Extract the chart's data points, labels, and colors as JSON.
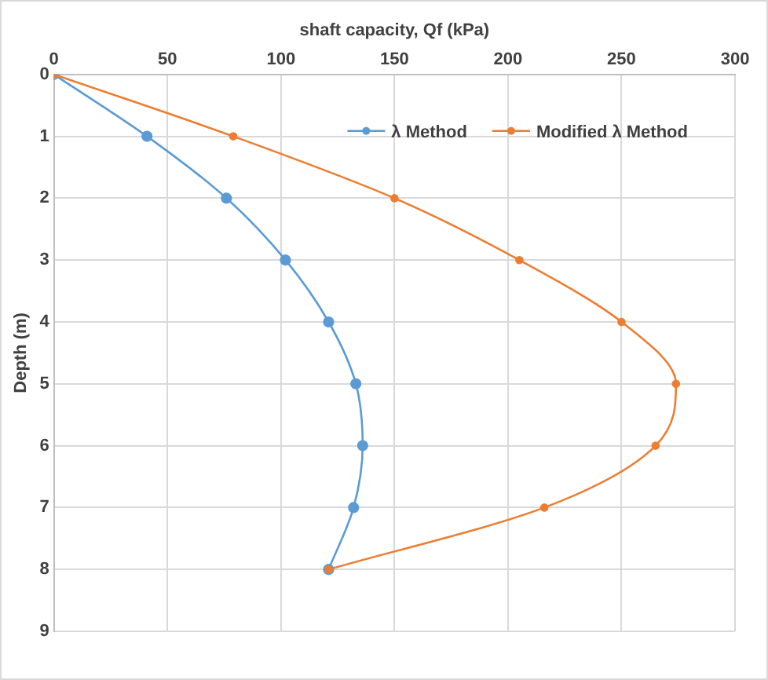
{
  "chart_data": {
    "type": "line",
    "orientation": "horizontal",
    "xlabel": "shaft capacity, Qf (kPa)",
    "ylabel": "Depth (m)",
    "x": [
      0,
      1,
      2,
      3,
      4,
      5,
      6,
      7,
      8
    ],
    "series": [
      {
        "name": "λ Method",
        "color": "#5b9bd5",
        "values": [
          0,
          41,
          76,
          102,
          121,
          133,
          136,
          132,
          121
        ]
      },
      {
        "name": "Modified λ Method",
        "color": "#ed7d31",
        "values": [
          0,
          79,
          150,
          205,
          250,
          274,
          265,
          216,
          121
        ]
      }
    ],
    "xlim": [
      0,
      300
    ],
    "xticks": [
      0,
      50,
      100,
      150,
      200,
      250,
      300
    ],
    "ylim": [
      9,
      0
    ],
    "yticks": [
      0,
      1,
      2,
      3,
      4,
      5,
      6,
      7,
      8,
      9
    ],
    "grid": true,
    "legend": "top right",
    "marker": "circle",
    "line_style": "solid"
  }
}
